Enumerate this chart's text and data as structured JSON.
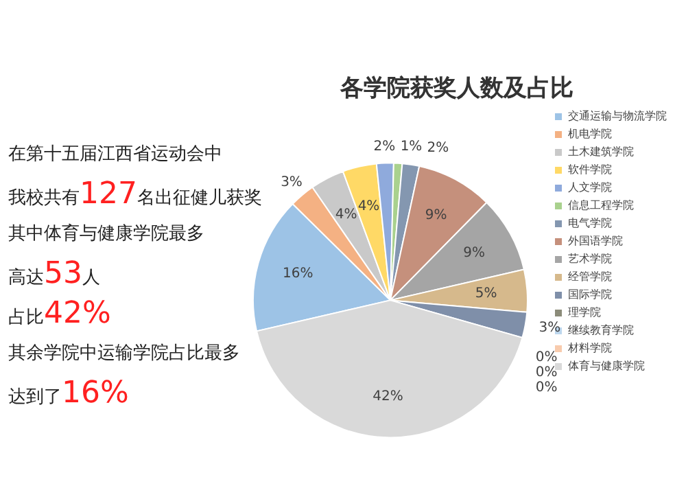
{
  "chart_data": {
    "type": "pie",
    "title": "各学院获奖人数及占比",
    "categories": [
      "交通运输与物流学院",
      "机电学院",
      "土木建筑学院",
      "软件学院",
      "人文学院",
      "信息工程学院",
      "电气学院",
      "外国语学院",
      "艺术学院",
      "经管学院",
      "国际学院",
      "理学院",
      "继续教育学院",
      "材料学院",
      "体育与健康学院"
    ],
    "values": [
      16,
      3,
      4,
      4,
      2,
      1,
      2,
      9,
      9,
      5,
      3,
      0,
      0,
      0,
      42
    ],
    "value_labels": [
      "16%",
      "3%",
      "4%",
      "4%",
      "2%",
      "1%",
      "2%",
      "9%",
      "9%",
      "5%",
      "3%",
      "0%",
      "0%",
      "0%",
      "42%"
    ],
    "colors": [
      "#9dc3e6",
      "#f4b183",
      "#c9c9c9",
      "#ffd966",
      "#8faadc",
      "#a9d18e",
      "#8497b0",
      "#c5907c",
      "#a5a5a5",
      "#d6b98c",
      "#7f8fa9",
      "#8c8c7a",
      "#bdd7ee",
      "#f8cbad",
      "#d9d9d9"
    ],
    "legend": "right",
    "annotations": [
      "在第十五届江西省运动会中",
      "我校共有127名出征健儿获奖",
      "其中体育与健康学院最多",
      "高达53人",
      "占比42%",
      "其余学院中运输学院占比最多",
      "达到了16%"
    ]
  }
}
